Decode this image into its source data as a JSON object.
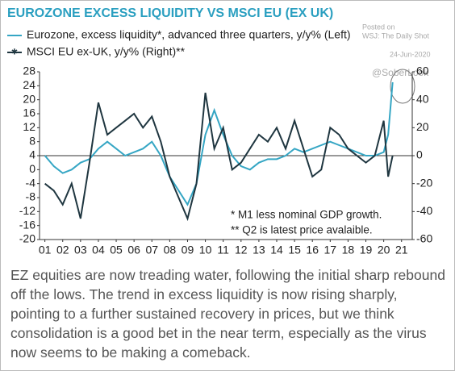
{
  "chart_data": {
    "type": "line",
    "title": "EUROZONE EXCESS LIQUIDITY VS MSCI EU (EX UK)",
    "series": [
      {
        "name": "Eurozone, excess liquidity*, advanced three quarters, y/y% (Left)",
        "color": "#35a6c4",
        "x": [
          1,
          1.5,
          2,
          2.5,
          3,
          3.5,
          4,
          4.5,
          5,
          5.5,
          6,
          6.5,
          7,
          7.5,
          8,
          8.5,
          9,
          9.5,
          10,
          10.5,
          11,
          11.5,
          12,
          12.5,
          13,
          13.5,
          14,
          14.5,
          15,
          15.5,
          16,
          16.5,
          17,
          17.5,
          18,
          18.5,
          19,
          19.5,
          20,
          20.25,
          20.5
        ],
        "values": [
          4,
          1,
          -1,
          0,
          2,
          3,
          6,
          8,
          6,
          4,
          5,
          6,
          8,
          4,
          -2,
          -6,
          -10,
          -4,
          10,
          17,
          10,
          4,
          1,
          0,
          2,
          3,
          3,
          4,
          6,
          5,
          6,
          7,
          8,
          7,
          6,
          5,
          4,
          4,
          5,
          10,
          25
        ]
      },
      {
        "name": "MSCI EU ex-UK, y/y% (Right)**",
        "color": "#1f3640",
        "axis": "y2",
        "x": [
          1,
          1.5,
          2,
          2.5,
          3,
          3.5,
          4,
          4.5,
          5,
          5.5,
          6,
          6.5,
          7,
          7.5,
          8,
          8.5,
          9,
          9.5,
          10,
          10.5,
          11,
          11.5,
          12,
          12.5,
          13,
          13.5,
          14,
          14.5,
          15,
          15.5,
          16,
          16.5,
          17,
          17.5,
          18,
          18.5,
          19,
          19.5,
          20,
          20.25,
          20.5
        ],
        "values": [
          -20,
          -25,
          -35,
          -20,
          -45,
          -5,
          38,
          15,
          20,
          25,
          30,
          20,
          28,
          10,
          -15,
          -30,
          -45,
          -20,
          45,
          5,
          20,
          -10,
          -5,
          5,
          15,
          10,
          20,
          5,
          25,
          5,
          -15,
          -10,
          20,
          15,
          5,
          0,
          -5,
          0,
          25,
          -15,
          0
        ]
      }
    ],
    "xlim": [
      0.7,
      21.6
    ],
    "xticks": [
      {
        "value": 1,
        "label": "01"
      },
      {
        "value": 2,
        "label": "02"
      },
      {
        "value": 3,
        "label": "03"
      },
      {
        "value": 4,
        "label": "04"
      },
      {
        "value": 5,
        "label": "05"
      },
      {
        "value": 6,
        "label": "06"
      },
      {
        "value": 7,
        "label": "07"
      },
      {
        "value": 8,
        "label": "08"
      },
      {
        "value": 9,
        "label": "09"
      },
      {
        "value": 10,
        "label": "10"
      },
      {
        "value": 11,
        "label": "11"
      },
      {
        "value": 12,
        "label": "12"
      },
      {
        "value": 13,
        "label": "13"
      },
      {
        "value": 14,
        "label": "14"
      },
      {
        "value": 15,
        "label": "15"
      },
      {
        "value": 16,
        "label": "16"
      },
      {
        "value": 17,
        "label": "17"
      },
      {
        "value": 18,
        "label": "18"
      },
      {
        "value": 19,
        "label": "19"
      },
      {
        "value": 20,
        "label": "20"
      },
      {
        "value": 21,
        "label": "21"
      }
    ],
    "ylim": [
      -20,
      28
    ],
    "yticks": [
      -20,
      -16,
      -12,
      -8,
      -4,
      0,
      4,
      8,
      12,
      16,
      20,
      24,
      28
    ],
    "y2lim": [
      -60,
      60
    ],
    "y2ticks": [
      -60,
      -40,
      -20,
      0,
      20,
      40,
      60
    ],
    "notes": [
      "* M1 less nominal GDP growth.",
      "** Q2 is latest price avalaible."
    ]
  },
  "watermark": {
    "posted": "Posted on",
    "source": "WSJ: The Daily Shot",
    "date": "24-Jun-2020",
    "handle": "@SoberLook"
  },
  "caption": "EZ equities are now treading water, following the initial sharp rebound off the lows.  The trend in excess liquidity is now rising sharply, pointing to a further sustained recovery in prices, but we think consolidation is a good bet in the near term, especially as the virus now seems to be making a comeback."
}
